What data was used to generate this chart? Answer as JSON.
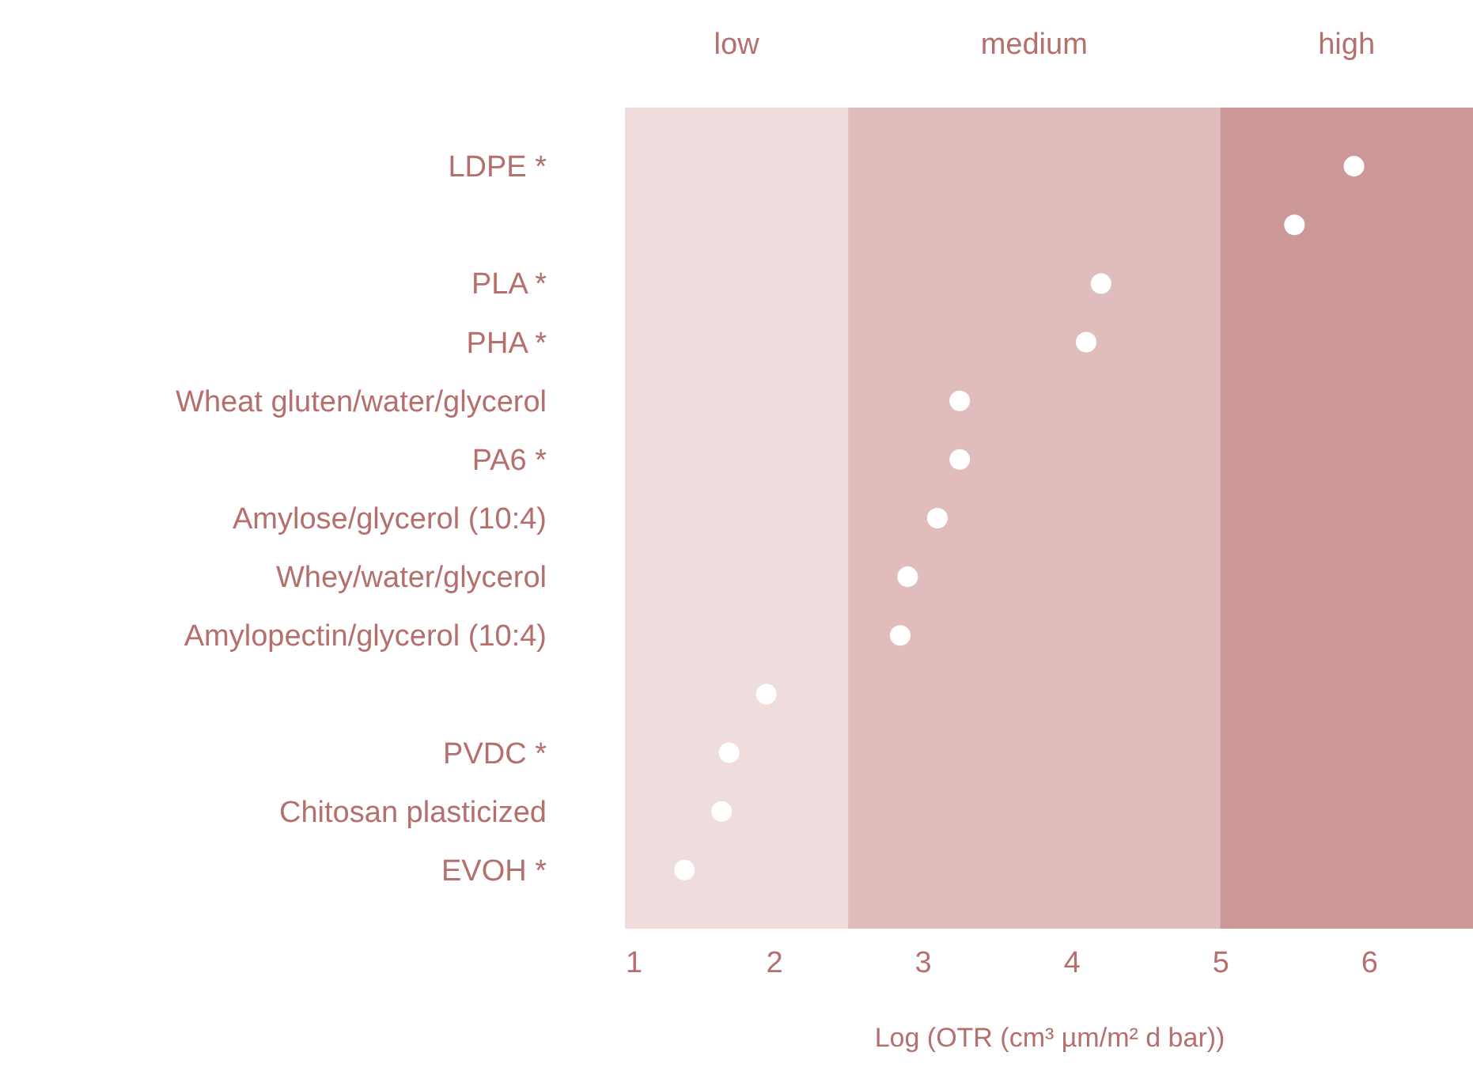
{
  "chart_data": {
    "type": "scatter",
    "xlabel": "Log (OTR (cm³ µm/m² d bar))",
    "categories": [
      "LDPE *",
      null,
      "PLA *",
      "PHA *",
      "Wheat gluten/water/glycerol",
      "PA6 *",
      "Amylose/glycerol (10:4)",
      "Whey/water/glycerol",
      "Amylopectin/glycerol (10:4)",
      null,
      "PVDC *",
      "Chitosan plasticized",
      "EVOH *"
    ],
    "values": [
      5.9,
      5.5,
      4.2,
      4.1,
      3.25,
      3.25,
      3.1,
      2.9,
      2.85,
      1.95,
      1.7,
      1.65,
      1.4
    ],
    "color": "#ffffff",
    "marker": "circle",
    "orientation": "horizontal",
    "xlim": [
      1,
      6.7
    ],
    "xticks": [
      1,
      2,
      3,
      4,
      5,
      6
    ],
    "grid": false,
    "bands": [
      {
        "axis": "x",
        "from": 1,
        "to": 2.5,
        "label": "low",
        "color": "#efdcdc"
      },
      {
        "axis": "x",
        "from": 2.5,
        "to": 5,
        "label": "medium",
        "color": "#e0bcbc"
      },
      {
        "axis": "x",
        "from": 5,
        "to": 6.7,
        "label": "high",
        "color": "#cc9898"
      }
    ]
  }
}
